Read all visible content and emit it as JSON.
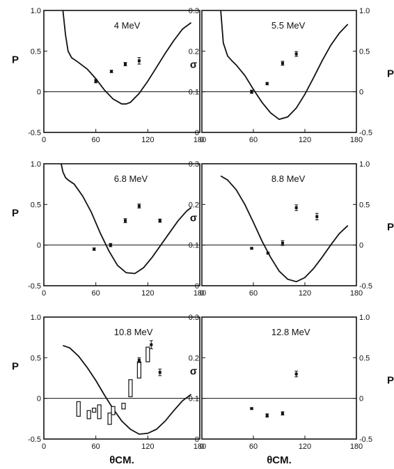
{
  "chart_data": [
    {
      "type": "line",
      "title": "4 MeV",
      "xlabel": "",
      "ylabel_left": "P",
      "xlim": [
        0,
        180
      ],
      "ylim": [
        -0.5,
        1.0
      ],
      "xticks": [
        "0",
        "60",
        "120",
        "180"
      ],
      "yticks": [
        "-0.5",
        "0",
        "0.5",
        "1.0"
      ],
      "series": [
        {
          "style": "curve",
          "x": [
            22,
            25,
            28,
            32,
            40,
            50,
            60,
            70,
            80,
            90,
            95,
            100,
            110,
            120,
            130,
            140,
            150,
            160,
            170
          ],
          "y": [
            1.0,
            0.7,
            0.5,
            0.42,
            0.36,
            0.28,
            0.16,
            0.02,
            -0.09,
            -0.15,
            -0.15,
            -0.13,
            -0.02,
            0.13,
            0.3,
            0.47,
            0.63,
            0.77,
            0.85
          ]
        },
        {
          "style": "points",
          "x": [
            60,
            78,
            94,
            110
          ],
          "y": [
            0.13,
            0.25,
            0.34,
            0.38
          ],
          "err": [
            0.02,
            0.015,
            0.02,
            0.04
          ]
        }
      ]
    },
    {
      "type": "line",
      "title": "5.5 MeV",
      "xlabel": "",
      "ylabel_left": "σ",
      "ylabel_right": "P",
      "xlim": [
        0,
        180
      ],
      "ylim_left": [
        0,
        0.3
      ],
      "ylim_right": [
        -0.5,
        1.0
      ],
      "xticks": [
        "0",
        "60",
        "120",
        "180"
      ],
      "yticks_left": [
        "0",
        "0.1",
        "0.2",
        "0.3"
      ],
      "yticks_right": [
        "-0.5",
        "0",
        "0.5",
        "1.0"
      ],
      "series": [
        {
          "style": "curve",
          "x": [
            22,
            25,
            30,
            35,
            40,
            50,
            60,
            70,
            80,
            90,
            100,
            110,
            120,
            130,
            140,
            150,
            160,
            170
          ],
          "y": [
            1.0,
            0.6,
            0.44,
            0.38,
            0.33,
            0.2,
            0.03,
            -0.13,
            -0.26,
            -0.34,
            -0.31,
            -0.2,
            -0.03,
            0.17,
            0.38,
            0.57,
            0.72,
            0.83
          ]
        },
        {
          "style": "points",
          "x": [
            58,
            76,
            94,
            110
          ],
          "y": [
            0.1,
            0.12,
            0.17,
            0.193
          ],
          "err": [
            0.004,
            0.003,
            0.005,
            0.006
          ]
        }
      ]
    },
    {
      "type": "line",
      "title": "6.8 MeV",
      "xlabel": "",
      "ylabel_left": "P",
      "xlim": [
        0,
        180
      ],
      "ylim": [
        -0.5,
        1.0
      ],
      "xticks": [
        "0",
        "60",
        "120",
        "180"
      ],
      "yticks": [
        "-0.5",
        "0",
        "0.5",
        "1.0"
      ],
      "series": [
        {
          "style": "curve",
          "x": [
            20,
            22,
            25,
            28,
            35,
            45,
            55,
            65,
            75,
            85,
            95,
            105,
            115,
            125,
            135,
            145,
            155,
            165,
            170
          ],
          "y": [
            1.0,
            0.9,
            0.83,
            0.8,
            0.75,
            0.6,
            0.4,
            0.15,
            -0.07,
            -0.25,
            -0.34,
            -0.35,
            -0.28,
            -0.15,
            0.0,
            0.15,
            0.3,
            0.42,
            0.46
          ]
        },
        {
          "style": "points",
          "x": [
            58,
            77,
            94,
            110,
            134
          ],
          "y": [
            -0.05,
            0.0,
            0.3,
            0.48,
            0.3
          ],
          "err": [
            0.015,
            0.02,
            0.025,
            0.025,
            0.02
          ]
        }
      ]
    },
    {
      "type": "line",
      "title": "8.8 MeV",
      "xlabel": "",
      "ylabel_left": "σ",
      "ylabel_right": "P",
      "xlim": [
        0,
        180
      ],
      "ylim_left": [
        0,
        0.3
      ],
      "ylim_right": [
        -0.5,
        1.0
      ],
      "xticks": [
        "0",
        "60",
        "120",
        "180"
      ],
      "yticks_left": [
        "0",
        "0.1",
        "0.2",
        "0.3"
      ],
      "yticks_right": [
        "-0.5",
        "0",
        "0.5",
        "1.0"
      ],
      "series": [
        {
          "style": "curve",
          "x": [
            22,
            30,
            40,
            50,
            60,
            70,
            80,
            90,
            100,
            110,
            120,
            130,
            140,
            150,
            160,
            170
          ],
          "y": [
            0.85,
            0.8,
            0.68,
            0.5,
            0.28,
            0.05,
            -0.15,
            -0.32,
            -0.42,
            -0.45,
            -0.4,
            -0.29,
            -0.15,
            0.0,
            0.14,
            0.24
          ]
        },
        {
          "style": "points",
          "x": [
            58,
            77,
            94,
            110,
            134
          ],
          "y": [
            0.092,
            0.08,
            0.105,
            0.192,
            0.17
          ],
          "err": [
            0.002,
            0.002,
            0.006,
            0.007,
            0.008
          ]
        }
      ]
    },
    {
      "type": "line",
      "title": "10.8 MeV",
      "xlabel": "θCM.",
      "ylabel_left": "P",
      "xlim": [
        0,
        180
      ],
      "ylim": [
        -0.5,
        1.0
      ],
      "xticks": [
        "0",
        "60",
        "120",
        "180"
      ],
      "yticks": [
        "-0.5",
        "0",
        "0.5",
        "1.0"
      ],
      "series": [
        {
          "style": "curve",
          "x": [
            22,
            30,
            40,
            50,
            60,
            70,
            80,
            90,
            100,
            110,
            120,
            130,
            140,
            150,
            160,
            170
          ],
          "y": [
            0.65,
            0.62,
            0.52,
            0.38,
            0.22,
            0.04,
            -0.13,
            -0.28,
            -0.38,
            -0.44,
            -0.43,
            -0.38,
            -0.28,
            -0.15,
            -0.03,
            0.05
          ]
        },
        {
          "style": "boxes",
          "x": [
            40,
            52,
            58,
            64,
            76,
            80,
            92,
            100,
            110,
            120
          ],
          "ylow": [
            -0.22,
            -0.25,
            -0.17,
            -0.25,
            -0.32,
            -0.2,
            -0.13,
            0.02,
            0.25,
            0.45
          ],
          "yhigh": [
            -0.04,
            -0.15,
            -0.12,
            -0.08,
            -0.18,
            -0.1,
            -0.06,
            0.23,
            0.45,
            0.63
          ]
        },
        {
          "style": "points",
          "x": [
            110,
            124,
            134
          ],
          "y": [
            0.47,
            0.66,
            0.32
          ],
          "err": [
            0.03,
            0.05,
            0.04
          ]
        }
      ]
    },
    {
      "type": "line",
      "title": "12.8 MeV",
      "xlabel": "θCM.",
      "ylabel_left": "σ",
      "ylabel_right": "P",
      "xlim": [
        0,
        180
      ],
      "ylim_left": [
        0,
        0.3
      ],
      "ylim_right": [
        -0.5,
        1.0
      ],
      "xticks": [
        "0",
        "60",
        "120",
        "180"
      ],
      "yticks_left": [
        "0",
        "0.1",
        "0.2",
        "0.3"
      ],
      "yticks_right": [
        "-0.5",
        "0",
        "0.5",
        "1.0"
      ],
      "series": [
        {
          "style": "points",
          "x": [
            58,
            76,
            94,
            110
          ],
          "y": [
            0.075,
            0.058,
            0.063,
            0.16
          ],
          "err": [
            0.002,
            0.004,
            0.004,
            0.007
          ]
        }
      ]
    }
  ]
}
